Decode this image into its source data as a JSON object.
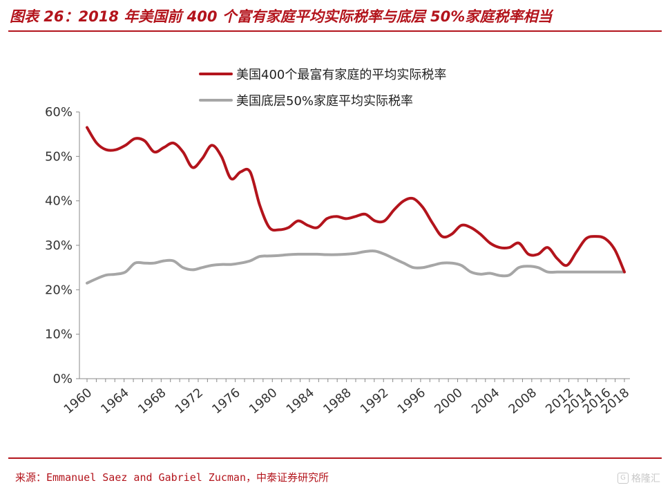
{
  "header": {
    "title": "图表 26：2018 年美国前 400 个富有家庭平均实际税率与底层 50%家庭税率相当"
  },
  "footer": {
    "source": "来源：Emmanuel Saez and Gabriel Zucman，中泰证券研究所",
    "watermark": "格隆汇",
    "watermark_mark": "G"
  },
  "chart_data": {
    "type": "line",
    "title": "",
    "xlabel": "",
    "ylabel": "",
    "xlim": [
      1960,
      2018
    ],
    "ylim": [
      0,
      60
    ],
    "y_ticks": [
      0,
      10,
      20,
      30,
      40,
      50,
      60
    ],
    "y_tick_labels": [
      "0%",
      "10%",
      "20%",
      "30%",
      "40%",
      "50%",
      "60%"
    ],
    "x_ticks": [
      1960,
      1964,
      1968,
      1972,
      1976,
      1980,
      1984,
      1988,
      1992,
      1996,
      2000,
      2004,
      2008,
      2012,
      2014,
      2016,
      2018
    ],
    "x_tick_labels": [
      "1960",
      "1964",
      "1968",
      "1972",
      "1976",
      "1980",
      "1984",
      "1988",
      "1992",
      "1996",
      "2000",
      "2004",
      "2008",
      "2012",
      "2014",
      "2016",
      "2018"
    ],
    "grid": false,
    "legend_position": "top-center",
    "series": [
      {
        "name": "美国400个最富有家庭的平均实际税率",
        "color": "#b3141c",
        "points": [
          [
            1960,
            56.5
          ],
          [
            1961,
            53.0
          ],
          [
            1962,
            51.5
          ],
          [
            1963,
            51.5
          ],
          [
            1964,
            52.5
          ],
          [
            1965,
            54.0
          ],
          [
            1966,
            53.5
          ],
          [
            1967,
            51.0
          ],
          [
            1968,
            52.0
          ],
          [
            1969,
            53.0
          ],
          [
            1970,
            51.0
          ],
          [
            1971,
            47.5
          ],
          [
            1972,
            49.5
          ],
          [
            1973,
            52.5
          ],
          [
            1974,
            50.0
          ],
          [
            1975,
            45.0
          ],
          [
            1976,
            46.5
          ],
          [
            1977,
            46.5
          ],
          [
            1978,
            39.0
          ],
          [
            1979,
            34.0
          ],
          [
            1980,
            33.5
          ],
          [
            1981,
            34.0
          ],
          [
            1982,
            35.5
          ],
          [
            1983,
            34.5
          ],
          [
            1984,
            34.0
          ],
          [
            1985,
            36.0
          ],
          [
            1986,
            36.5
          ],
          [
            1987,
            36.0
          ],
          [
            1988,
            36.5
          ],
          [
            1989,
            37.0
          ],
          [
            1990,
            35.5
          ],
          [
            1991,
            35.5
          ],
          [
            1992,
            38.0
          ],
          [
            1993,
            40.0
          ],
          [
            1994,
            40.5
          ],
          [
            1995,
            38.5
          ],
          [
            1996,
            35.0
          ],
          [
            1997,
            32.0
          ],
          [
            1998,
            32.5
          ],
          [
            1999,
            34.5
          ],
          [
            2000,
            34.0
          ],
          [
            2001,
            32.5
          ],
          [
            2002,
            30.5
          ],
          [
            2003,
            29.5
          ],
          [
            2004,
            29.5
          ],
          [
            2005,
            30.5
          ],
          [
            2006,
            28.0
          ],
          [
            2007,
            28.0
          ],
          [
            2008,
            29.5
          ],
          [
            2009,
            27.0
          ],
          [
            2010,
            25.5
          ],
          [
            2011,
            28.5
          ],
          [
            2012,
            31.5
          ],
          [
            2013,
            32.0
          ],
          [
            2014,
            31.5
          ],
          [
            2015,
            29.0
          ],
          [
            2016,
            24.0
          ]
        ]
      },
      {
        "name": "美国底层50%家庭平均实际税率",
        "color": "#a6a6a6",
        "points": [
          [
            1960,
            21.5
          ],
          [
            1961,
            22.5
          ],
          [
            1962,
            23.3
          ],
          [
            1963,
            23.5
          ],
          [
            1964,
            24.0
          ],
          [
            1965,
            26.0
          ],
          [
            1966,
            26.0
          ],
          [
            1967,
            26.0
          ],
          [
            1968,
            26.5
          ],
          [
            1969,
            26.5
          ],
          [
            1970,
            25.0
          ],
          [
            1971,
            24.5
          ],
          [
            1972,
            25.0
          ],
          [
            1973,
            25.5
          ],
          [
            1974,
            25.7
          ],
          [
            1975,
            25.7
          ],
          [
            1976,
            26.0
          ],
          [
            1977,
            26.5
          ],
          [
            1978,
            27.5
          ],
          [
            1979,
            27.6
          ],
          [
            1980,
            27.7
          ],
          [
            1981,
            27.9
          ],
          [
            1982,
            28.0
          ],
          [
            1983,
            28.0
          ],
          [
            1984,
            28.0
          ],
          [
            1985,
            27.9
          ],
          [
            1986,
            27.9
          ],
          [
            1987,
            28.0
          ],
          [
            1988,
            28.2
          ],
          [
            1989,
            28.6
          ],
          [
            1990,
            28.7
          ],
          [
            1991,
            28.0
          ],
          [
            1992,
            27.0
          ],
          [
            1993,
            26.0
          ],
          [
            1994,
            25.0
          ],
          [
            1995,
            25.0
          ],
          [
            1996,
            25.5
          ],
          [
            1997,
            26.0
          ],
          [
            1998,
            26.0
          ],
          [
            1999,
            25.5
          ],
          [
            2000,
            24.0
          ],
          [
            2001,
            23.5
          ],
          [
            2002,
            23.7
          ],
          [
            2003,
            23.2
          ],
          [
            2004,
            23.3
          ],
          [
            2005,
            25.0
          ],
          [
            2006,
            25.3
          ],
          [
            2007,
            25.0
          ],
          [
            2008,
            24.0
          ],
          [
            2009,
            24.0
          ],
          [
            2010,
            24.0
          ],
          [
            2011,
            24.0
          ],
          [
            2012,
            24.0
          ],
          [
            2013,
            24.0
          ],
          [
            2014,
            24.0
          ],
          [
            2015,
            24.0
          ],
          [
            2016,
            24.0
          ]
        ]
      }
    ]
  }
}
